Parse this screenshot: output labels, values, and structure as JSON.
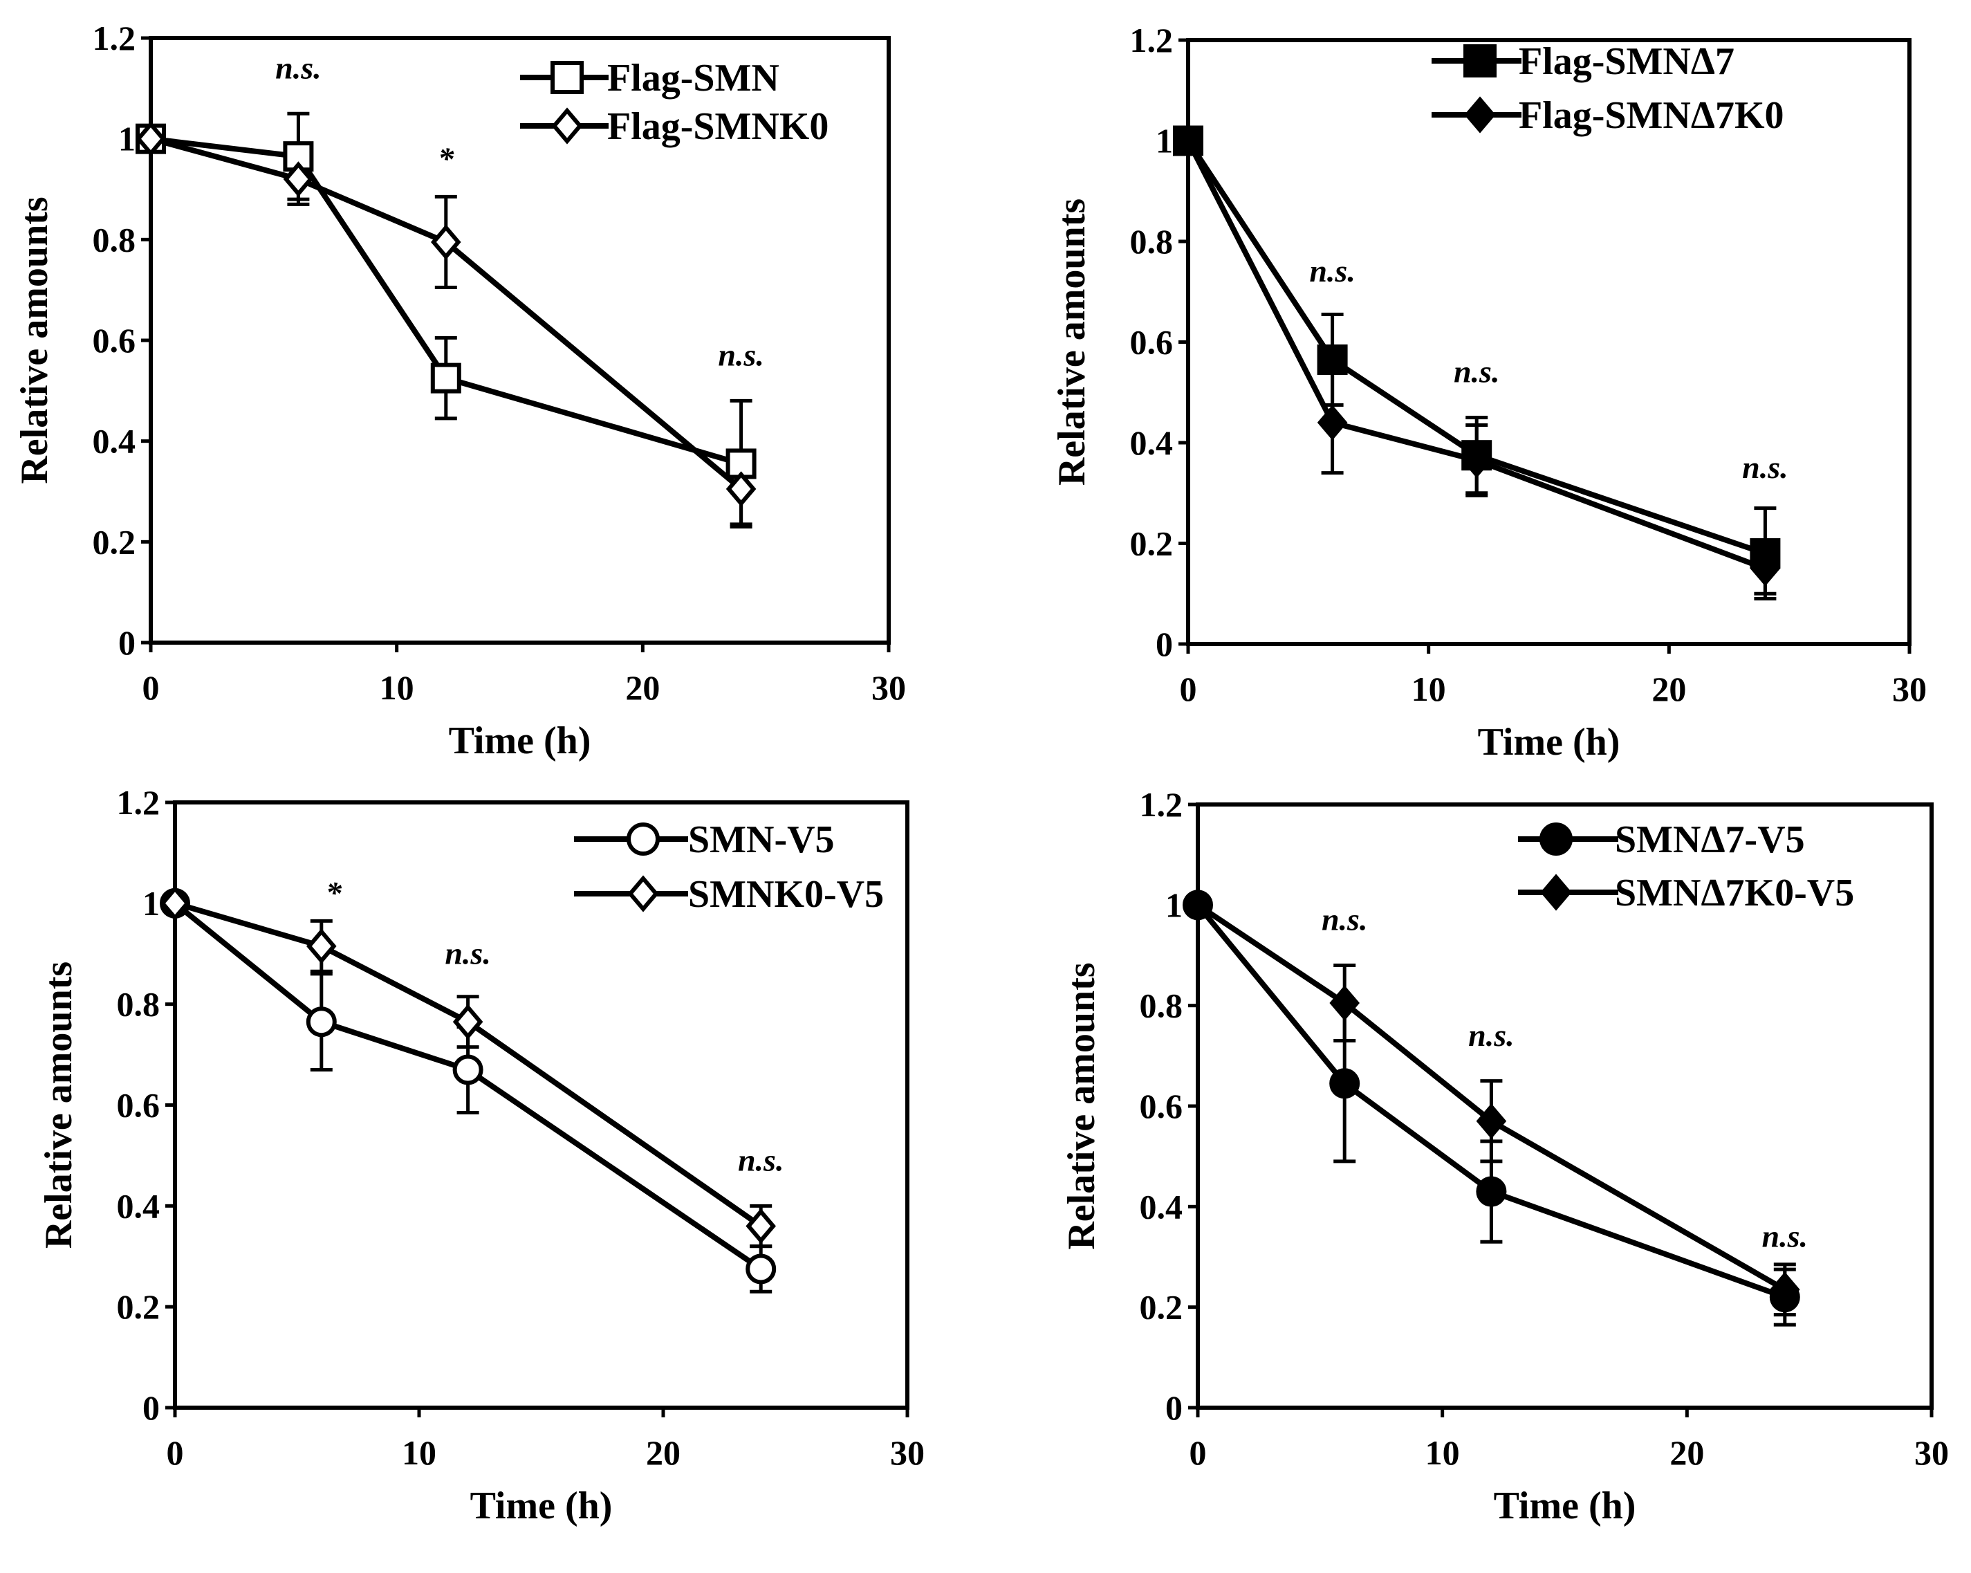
{
  "chart_data": [
    {
      "type": "line",
      "panel": "top-left",
      "xlabel": "Time (h)",
      "ylabel": "Relative amounts",
      "xlim": [
        0,
        30
      ],
      "ylim": [
        0,
        1.2
      ],
      "xticks": [
        "0",
        "10",
        "20",
        "30"
      ],
      "yticks": [
        "0",
        "0.2",
        "0.4",
        "0.6",
        "0.8",
        "1",
        "1.2"
      ],
      "legend_position": "top-right",
      "x": [
        0,
        6,
        12,
        24
      ],
      "series": [
        {
          "name": "Flag-SMN",
          "marker": "square-open",
          "values": [
            1.0,
            0.965,
            0.525,
            0.355
          ],
          "errors": [
            0,
            0.085,
            0.08,
            0.125
          ]
        },
        {
          "name": "Flag-SMNK0",
          "marker": "diamond-open",
          "values": [
            1.0,
            0.92,
            0.795,
            0.305
          ],
          "errors": [
            0,
            0.05,
            0.09,
            0.07
          ]
        }
      ],
      "significance": [
        "n.s.",
        "*",
        "n.s."
      ],
      "significance_x": [
        6,
        12,
        24
      ],
      "significance_y": [
        1.12,
        0.94,
        0.55
      ]
    },
    {
      "type": "line",
      "panel": "top-right",
      "xlabel": "Time (h)",
      "ylabel": "Relative amounts",
      "xlim": [
        0,
        30
      ],
      "ylim": [
        0,
        1.2
      ],
      "xticks": [
        "0",
        "10",
        "20",
        "30"
      ],
      "yticks": [
        "0",
        "0.2",
        "0.4",
        "0.6",
        "0.8",
        "1",
        "1.2"
      ],
      "legend_position": "top-right",
      "x": [
        0,
        6,
        12,
        24
      ],
      "series": [
        {
          "name": "Flag-SMNΔ7",
          "marker": "square-filled",
          "values": [
            1.0,
            0.565,
            0.375,
            0.18
          ],
          "errors": [
            0,
            0.09,
            0.075,
            0.09
          ]
        },
        {
          "name": "Flag-SMNΔ7K0",
          "marker": "diamond-filled",
          "values": [
            1.0,
            0.44,
            0.365,
            0.15
          ],
          "errors": [
            0,
            0.1,
            0.07,
            0.05
          ]
        }
      ],
      "significance": [
        "n.s.",
        "n.s.",
        "n.s."
      ],
      "significance_x": [
        6,
        12,
        24
      ],
      "significance_y": [
        0.72,
        0.52,
        0.33
      ]
    },
    {
      "type": "line",
      "panel": "bottom-left",
      "xlabel": "Time (h)",
      "ylabel": "Relative amounts",
      "xlim": [
        0,
        30
      ],
      "ylim": [
        0,
        1.2
      ],
      "xticks": [
        "0",
        "10",
        "20",
        "30"
      ],
      "yticks": [
        "0",
        "0.2",
        "0.4",
        "0.6",
        "0.8",
        "1",
        "1.2"
      ],
      "legend_position": "top-right",
      "x": [
        0,
        6,
        12,
        24
      ],
      "series": [
        {
          "name": "SMN-V5",
          "marker": "circle-open",
          "values": [
            1.0,
            0.765,
            0.67,
            0.275
          ],
          "errors": [
            0,
            0.095,
            0.085,
            0.045
          ]
        },
        {
          "name": "SMNK0-V5",
          "marker": "diamond-open",
          "values": [
            1.0,
            0.915,
            0.765,
            0.36
          ],
          "errors": [
            0,
            0.05,
            0.05,
            0.04
          ]
        }
      ],
      "significance": [
        "*",
        "n.s.",
        "n.s."
      ],
      "significance_x": [
        6.5,
        12,
        24
      ],
      "significance_y": [
        1.0,
        0.88,
        0.47
      ]
    },
    {
      "type": "line",
      "panel": "bottom-right",
      "xlabel": "Time (h)",
      "ylabel": "Relative amounts",
      "xlim": [
        0,
        30
      ],
      "ylim": [
        0,
        1.2
      ],
      "xticks": [
        "0",
        "10",
        "20",
        "30"
      ],
      "yticks": [
        "0",
        "0.2",
        "0.4",
        "0.6",
        "0.8",
        "1",
        "1.2"
      ],
      "legend_position": "top-right",
      "x": [
        0,
        6,
        12,
        24
      ],
      "series": [
        {
          "name": "SMNΔ7-V5",
          "marker": "circle-filled",
          "values": [
            1.0,
            0.645,
            0.43,
            0.22
          ],
          "errors": [
            0,
            0.155,
            0.1,
            0.055
          ]
        },
        {
          "name": "SMNΔ7K0-V5",
          "marker": "diamond-filled",
          "values": [
            1.0,
            0.805,
            0.57,
            0.235
          ],
          "errors": [
            0,
            0.075,
            0.08,
            0.05
          ]
        }
      ],
      "significance": [
        "n.s.",
        "n.s.",
        "n.s."
      ],
      "significance_x": [
        6,
        12,
        24
      ],
      "significance_y": [
        0.95,
        0.72,
        0.32
      ]
    }
  ]
}
